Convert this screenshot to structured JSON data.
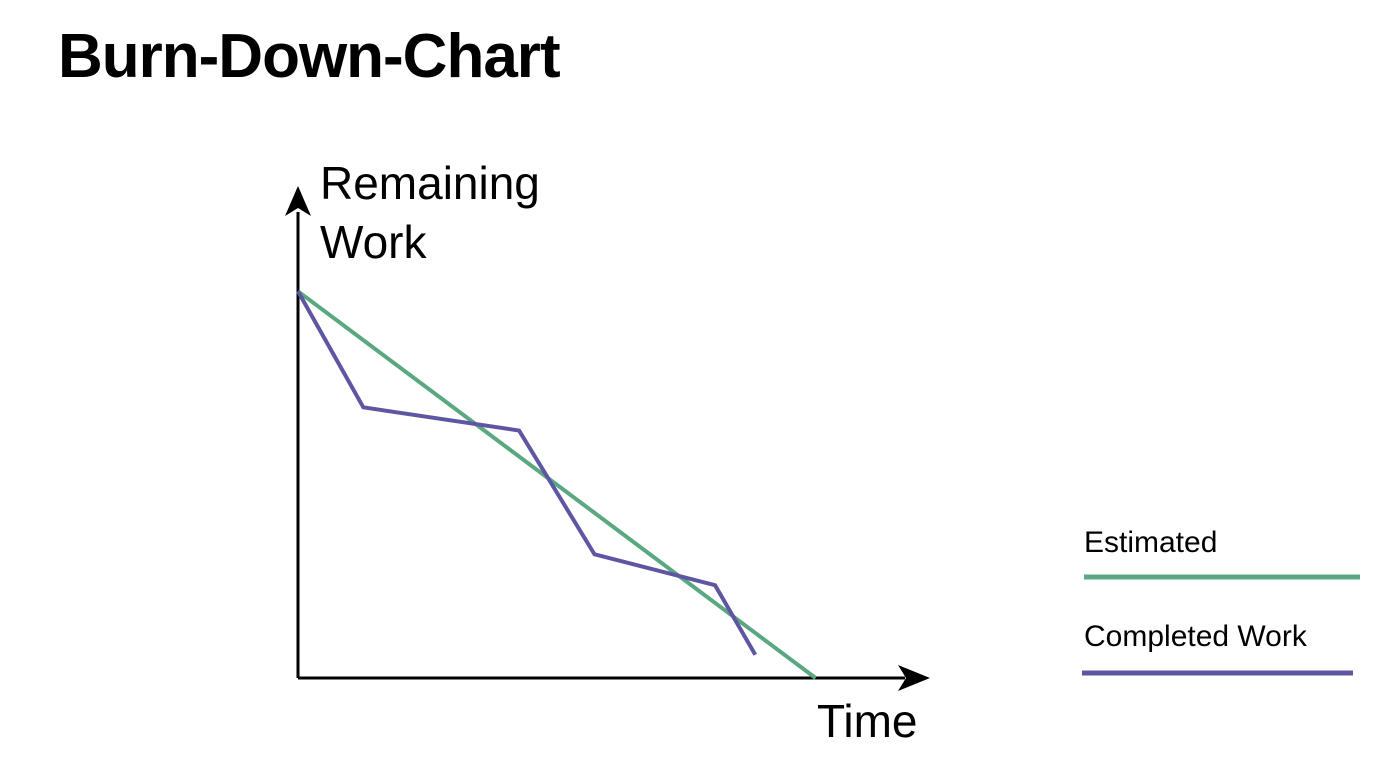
{
  "chart_data": {
    "type": "line",
    "title": "Burn-Down-Chart",
    "xlabel": "Time",
    "ylabel": "Remaining Work",
    "ylabel_lines": [
      "Remaining",
      "Work"
    ],
    "xlim": [
      0,
      12
    ],
    "ylim": [
      0,
      12
    ],
    "grid": false,
    "axis_ticks": false,
    "legend_position": "right",
    "series": [
      {
        "name": "Estimated",
        "color": "#5aa882",
        "points": [
          [
            0,
            10
          ],
          [
            10.3,
            0
          ]
        ]
      },
      {
        "name": "Completed Work",
        "color": "#5e56a2",
        "points": [
          [
            0,
            10
          ],
          [
            1.3,
            7
          ],
          [
            4.4,
            6.4
          ],
          [
            5.9,
            3.2
          ],
          [
            8.3,
            2.4
          ],
          [
            9.1,
            0.6
          ]
        ]
      }
    ]
  }
}
